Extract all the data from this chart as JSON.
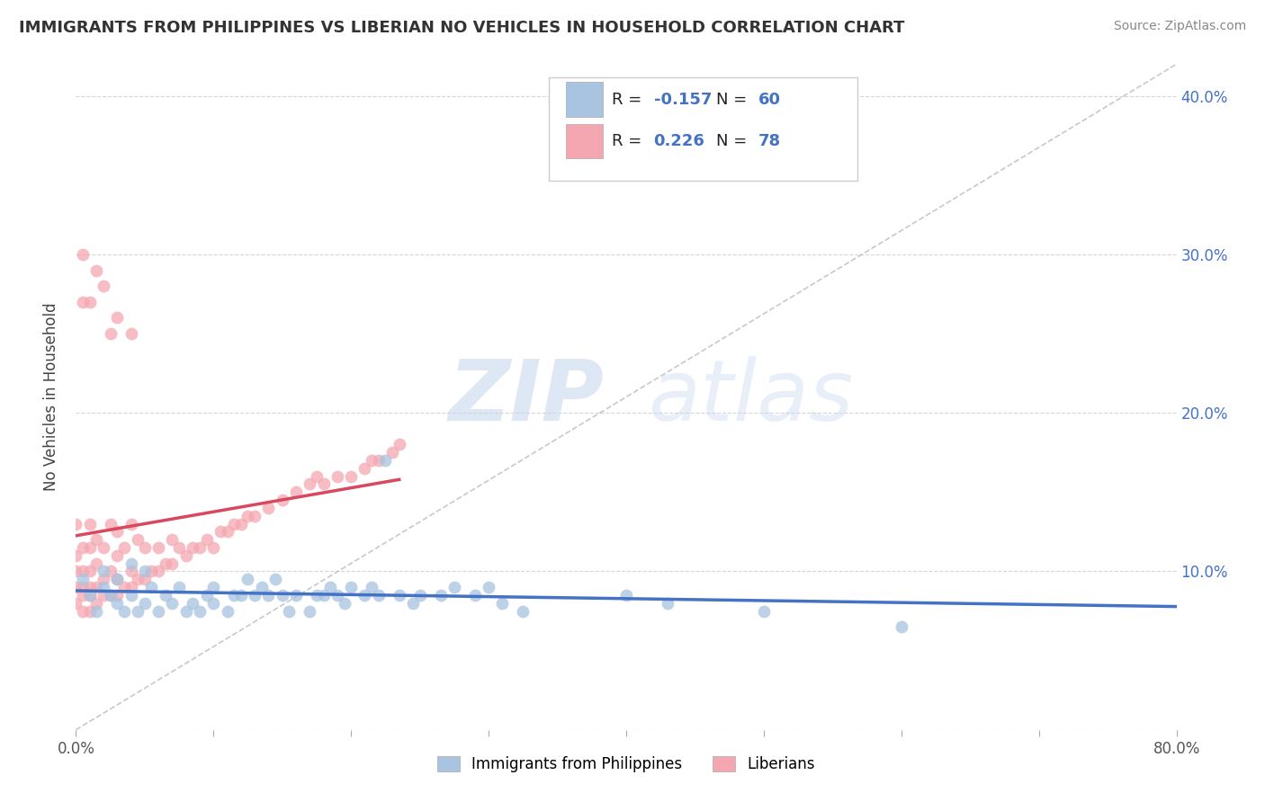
{
  "title": "IMMIGRANTS FROM PHILIPPINES VS LIBERIAN NO VEHICLES IN HOUSEHOLD CORRELATION CHART",
  "source": "Source: ZipAtlas.com",
  "ylabel": "No Vehicles in Household",
  "xlim": [
    0.0,
    0.8
  ],
  "ylim": [
    0.0,
    0.42
  ],
  "r_philippines": -0.157,
  "n_philippines": 60,
  "r_liberian": 0.226,
  "n_liberian": 78,
  "color_philippines": "#a8c4e0",
  "color_liberian": "#f4a7b0",
  "line_color_philippines": "#4472c4",
  "line_color_liberian": "#d9485e",
  "watermark_zip": "ZIP",
  "watermark_atlas": "atlas",
  "legend_label_philippines": "Immigrants from Philippines",
  "legend_label_liberian": "Liberians",
  "philippines_x": [
    0.005,
    0.01,
    0.015,
    0.02,
    0.02,
    0.025,
    0.03,
    0.03,
    0.035,
    0.04,
    0.04,
    0.045,
    0.05,
    0.05,
    0.055,
    0.06,
    0.065,
    0.07,
    0.075,
    0.08,
    0.085,
    0.09,
    0.095,
    0.1,
    0.1,
    0.11,
    0.115,
    0.12,
    0.125,
    0.13,
    0.135,
    0.14,
    0.145,
    0.15,
    0.155,
    0.16,
    0.17,
    0.175,
    0.18,
    0.185,
    0.19,
    0.195,
    0.2,
    0.21,
    0.215,
    0.22,
    0.225,
    0.235,
    0.245,
    0.25,
    0.265,
    0.275,
    0.29,
    0.3,
    0.31,
    0.325,
    0.4,
    0.43,
    0.5,
    0.6
  ],
  "philippines_y": [
    0.095,
    0.085,
    0.075,
    0.09,
    0.1,
    0.085,
    0.08,
    0.095,
    0.075,
    0.085,
    0.105,
    0.075,
    0.08,
    0.1,
    0.09,
    0.075,
    0.085,
    0.08,
    0.09,
    0.075,
    0.08,
    0.075,
    0.085,
    0.08,
    0.09,
    0.075,
    0.085,
    0.085,
    0.095,
    0.085,
    0.09,
    0.085,
    0.095,
    0.085,
    0.075,
    0.085,
    0.075,
    0.085,
    0.085,
    0.09,
    0.085,
    0.08,
    0.09,
    0.085,
    0.09,
    0.085,
    0.17,
    0.085,
    0.08,
    0.085,
    0.085,
    0.09,
    0.085,
    0.09,
    0.08,
    0.075,
    0.085,
    0.08,
    0.075,
    0.065
  ],
  "liberian_x": [
    0.0,
    0.0,
    0.0,
    0.0,
    0.0,
    0.005,
    0.005,
    0.005,
    0.005,
    0.005,
    0.01,
    0.01,
    0.01,
    0.01,
    0.01,
    0.01,
    0.015,
    0.015,
    0.015,
    0.015,
    0.02,
    0.02,
    0.02,
    0.025,
    0.025,
    0.025,
    0.03,
    0.03,
    0.03,
    0.03,
    0.035,
    0.035,
    0.04,
    0.04,
    0.04,
    0.045,
    0.045,
    0.05,
    0.05,
    0.055,
    0.06,
    0.06,
    0.065,
    0.07,
    0.07,
    0.075,
    0.08,
    0.085,
    0.09,
    0.095,
    0.1,
    0.105,
    0.11,
    0.115,
    0.12,
    0.125,
    0.13,
    0.14,
    0.15,
    0.16,
    0.17,
    0.175,
    0.18,
    0.19,
    0.2,
    0.21,
    0.215,
    0.22,
    0.23,
    0.235,
    0.005,
    0.005,
    0.01,
    0.015,
    0.02,
    0.025,
    0.03,
    0.04
  ],
  "liberian_y": [
    0.08,
    0.09,
    0.1,
    0.11,
    0.13,
    0.075,
    0.085,
    0.09,
    0.1,
    0.115,
    0.075,
    0.085,
    0.09,
    0.1,
    0.115,
    0.13,
    0.08,
    0.09,
    0.105,
    0.12,
    0.085,
    0.095,
    0.115,
    0.085,
    0.1,
    0.13,
    0.085,
    0.095,
    0.11,
    0.125,
    0.09,
    0.115,
    0.09,
    0.1,
    0.13,
    0.095,
    0.12,
    0.095,
    0.115,
    0.1,
    0.1,
    0.115,
    0.105,
    0.105,
    0.12,
    0.115,
    0.11,
    0.115,
    0.115,
    0.12,
    0.115,
    0.125,
    0.125,
    0.13,
    0.13,
    0.135,
    0.135,
    0.14,
    0.145,
    0.15,
    0.155,
    0.16,
    0.155,
    0.16,
    0.16,
    0.165,
    0.17,
    0.17,
    0.175,
    0.18,
    0.27,
    0.3,
    0.27,
    0.29,
    0.28,
    0.25,
    0.26,
    0.25
  ]
}
